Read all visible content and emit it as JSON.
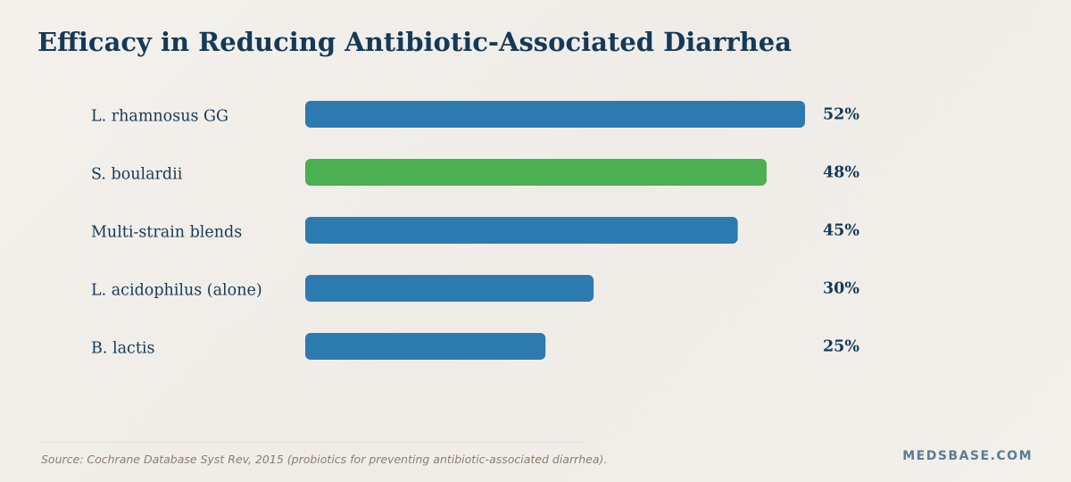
{
  "chart_data": {
    "type": "bar",
    "orientation": "horizontal",
    "title": "Efficacy in Reducing Antibiotic-Associated Diarrhea",
    "categories": [
      "L. rhamnosus GG",
      "S. boulardii",
      "Multi-strain blends",
      "L. acidophilus (alone)",
      "B. lactis"
    ],
    "values": [
      52,
      48,
      45,
      30,
      25
    ],
    "value_labels": [
      "52%",
      "48%",
      "45%",
      "30%",
      "25%"
    ],
    "xlim": [
      0,
      52
    ],
    "grid": false,
    "colors": {
      "default_bar": "#2d7ab1",
      "highlight_bar": "#4caf52",
      "highlight_category": "S. boulardii",
      "text": "#143a57"
    }
  },
  "footer": {
    "source": "Source: Cochrane Database Syst Rev, 2015 (probiotics for preventing antibiotic-associated diarrhea).",
    "brand": "MEDSBASE.COM"
  }
}
